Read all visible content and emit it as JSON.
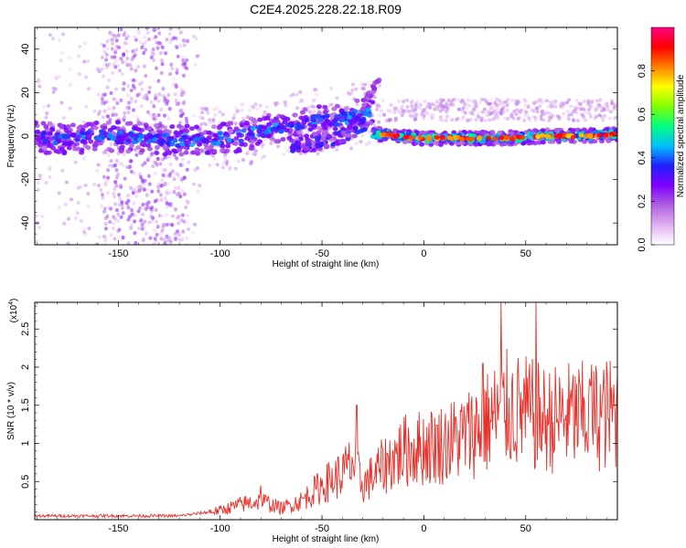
{
  "title": "C2E4.2025.228.22.18.R09",
  "chart_data": [
    {
      "type": "heatmap",
      "xlabel": "Height of straight line (km)",
      "ylabel": "Frequency (Hz)",
      "xlim": [
        -191,
        95
      ],
      "ylim": [
        -50,
        50
      ],
      "x_ticks": [
        -150,
        -100,
        -50,
        0,
        50
      ],
      "y_ticks": [
        -40,
        -20,
        0,
        20,
        40
      ],
      "colorbar": {
        "label": "Normalized spectral amplitude",
        "range": [
          0,
          1
        ],
        "ticks": [
          "0.0",
          "0.2",
          "0.4",
          "0.6",
          "0.8"
        ],
        "colormap": [
          "#ffffff",
          "#e0b0f0",
          "#b060e0",
          "#8000ff",
          "#2020ff",
          "#00c0ff",
          "#00ff80",
          "#80ff00",
          "#ffff00",
          "#ff8000",
          "#ff0000",
          "#ff0080"
        ]
      },
      "main_track": [
        {
          "x": -191,
          "f": 0
        },
        {
          "x": -175,
          "f": -2
        },
        {
          "x": -160,
          "f": 0
        },
        {
          "x": -140,
          "f": -1
        },
        {
          "x": -120,
          "f": -2
        },
        {
          "x": -100,
          "f": -1
        },
        {
          "x": -90,
          "f": 0
        },
        {
          "x": -80,
          "f": 2
        },
        {
          "x": -70,
          "f": 4
        },
        {
          "x": -60,
          "f": 6
        },
        {
          "x": -50,
          "f": 7
        },
        {
          "x": -40,
          "f": 8
        },
        {
          "x": -30,
          "f": 10
        },
        {
          "x": -25,
          "f": 12
        }
      ],
      "secondary_track": [
        {
          "x": -65,
          "f": -4
        },
        {
          "x": -55,
          "f": -4
        },
        {
          "x": -45,
          "f": -2
        },
        {
          "x": -35,
          "f": 2
        },
        {
          "x": -28,
          "f": 6
        }
      ],
      "tail_track": [
        {
          "x": -30,
          "f": 14
        },
        {
          "x": -26,
          "f": 20
        },
        {
          "x": -22,
          "f": 26
        }
      ],
      "stable_track": [
        {
          "x": -25,
          "f": 1
        },
        {
          "x": 0,
          "f": -1
        },
        {
          "x": 20,
          "f": -1
        },
        {
          "x": 40,
          "f": -1
        },
        {
          "x": 60,
          "f": 0
        },
        {
          "x": 80,
          "f": 0
        },
        {
          "x": 95,
          "f": 1
        }
      ]
    },
    {
      "type": "line",
      "xlabel": "Height of straight line (km)",
      "ylabel": "SNR (10 * v/v)",
      "scale_label": "(x10",
      "scale_exp": "4",
      "xlim": [
        -191,
        95
      ],
      "ylim": [
        0,
        2.85
      ],
      "x_ticks": [
        -150,
        -100,
        -50,
        0,
        50
      ],
      "y_ticks": [
        0.5,
        1,
        1.5,
        2,
        2.5
      ],
      "series": [
        {
          "color": "#e8302a",
          "envelope": [
            {
              "x": -191,
              "y": 0.05
            },
            {
              "x": -120,
              "y": 0.05
            },
            {
              "x": -100,
              "y": 0.12
            },
            {
              "x": -90,
              "y": 0.2
            },
            {
              "x": -80,
              "y": 0.25
            },
            {
              "x": -70,
              "y": 0.15
            },
            {
              "x": -60,
              "y": 0.25
            },
            {
              "x": -50,
              "y": 0.45
            },
            {
              "x": -40,
              "y": 0.6
            },
            {
              "x": -35,
              "y": 0.75
            },
            {
              "x": -30,
              "y": 0.45
            },
            {
              "x": -20,
              "y": 0.7
            },
            {
              "x": -10,
              "y": 0.9
            },
            {
              "x": 0,
              "y": 0.95
            },
            {
              "x": 10,
              "y": 1.0
            },
            {
              "x": 20,
              "y": 1.1
            },
            {
              "x": 30,
              "y": 1.25
            },
            {
              "x": 40,
              "y": 1.45
            },
            {
              "x": 50,
              "y": 1.4
            },
            {
              "x": 60,
              "y": 1.3
            },
            {
              "x": 70,
              "y": 1.35
            },
            {
              "x": 80,
              "y": 1.35
            },
            {
              "x": 95,
              "y": 1.4
            }
          ],
          "peaks": [
            {
              "x": -80,
              "y": 0.45
            },
            {
              "x": -33,
              "y": 1.5
            },
            {
              "x": 29,
              "y": 2.05
            },
            {
              "x": 38,
              "y": 2.85
            },
            {
              "x": 55,
              "y": 2.85
            },
            {
              "x": 82,
              "y": 1.75
            }
          ]
        }
      ]
    }
  ]
}
